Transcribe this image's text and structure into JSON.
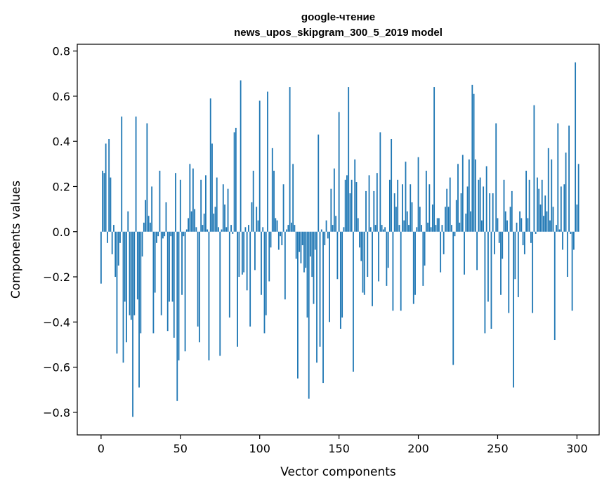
{
  "chart_data": {
    "type": "bar",
    "title": "google-чтение",
    "subtitle": "news_upos_skipgram_300_5_2019 model",
    "xlabel": "Vector components",
    "ylabel": "Components values",
    "xlim": [
      -15,
      314
    ],
    "ylim": [
      -0.9,
      0.83
    ],
    "xticks": [
      0,
      50,
      100,
      150,
      200,
      250,
      300
    ],
    "xtick_labels": [
      "0",
      "50",
      "100",
      "150",
      "200",
      "250",
      "300"
    ],
    "yticks": [
      -0.8,
      -0.6,
      -0.4,
      -0.2,
      0.0,
      0.2,
      0.4,
      0.6,
      0.8
    ],
    "ytick_labels": [
      "−0.8",
      "−0.6",
      "−0.4",
      "−0.2",
      "0.0",
      "0.2",
      "0.4",
      "0.6",
      "0.8"
    ],
    "grid": false,
    "bar_color": "#1f77b4",
    "values": [
      -0.23,
      0.27,
      0.26,
      0.39,
      -0.05,
      0.41,
      0.24,
      -0.1,
      0.03,
      -0.2,
      -0.54,
      -0.15,
      -0.05,
      0.51,
      -0.58,
      -0.31,
      -0.49,
      0.09,
      -0.37,
      -0.39,
      -0.82,
      -0.37,
      0.51,
      -0.3,
      -0.69,
      -0.45,
      -0.11,
      0.04,
      0.14,
      0.48,
      0.07,
      0.04,
      0.2,
      -0.45,
      -0.27,
      -0.05,
      -0.02,
      0.27,
      -0.37,
      -0.03,
      -0.02,
      0.13,
      -0.44,
      -0.31,
      -0.02,
      -0.31,
      -0.47,
      0.26,
      -0.75,
      -0.57,
      0.23,
      -0.28,
      -0.02,
      -0.53,
      0.01,
      0.06,
      0.3,
      0.09,
      0.28,
      0.1,
      0.02,
      -0.42,
      -0.49,
      0.23,
      0.03,
      0.08,
      0.25,
      0.01,
      -0.57,
      0.59,
      0.39,
      0.08,
      0.11,
      0.24,
      0.02,
      -0.55,
      0.01,
      0.21,
      0.12,
      0.02,
      0.19,
      -0.38,
      0.03,
      -0.01,
      0.44,
      0.46,
      -0.51,
      -0.2,
      0.67,
      -0.19,
      -0.18,
      0.02,
      -0.26,
      0.03,
      -0.42,
      0.13,
      0.27,
      -0.17,
      0.11,
      0.05,
      0.58,
      -0.28,
      0.02,
      -0.45,
      -0.37,
      0.62,
      -0.22,
      -0.07,
      0.37,
      0.27,
      0.06,
      0.05,
      -0.08,
      -0.02,
      -0.06,
      0.21,
      -0.3,
      0.01,
      0.03,
      0.64,
      0.04,
      0.3,
      0.03,
      -0.12,
      -0.65,
      -0.09,
      -0.14,
      -0.06,
      -0.18,
      -0.16,
      -0.38,
      -0.74,
      -0.11,
      -0.2,
      -0.32,
      -0.08,
      -0.58,
      0.43,
      -0.51,
      0.01,
      -0.67,
      -0.06,
      0.05,
      -0.03,
      -0.4,
      0.19,
      0.03,
      0.28,
      0.07,
      -0.21,
      0.53,
      -0.43,
      -0.38,
      0.02,
      0.23,
      0.25,
      0.64,
      0.17,
      0.23,
      -0.62,
      0.32,
      0.22,
      0.06,
      -0.07,
      -0.13,
      -0.27,
      -0.28,
      0.18,
      -0.2,
      0.25,
      0.02,
      -0.33,
      0.18,
      0.03,
      0.26,
      -0.22,
      0.44,
      0.03,
      0.01,
      0.02,
      -0.24,
      -0.16,
      0.23,
      0.41,
      -0.35,
      0.17,
      0.11,
      0.23,
      0.03,
      -0.35,
      0.21,
      0.05,
      0.31,
      0.09,
      0.03,
      0.21,
      0.13,
      -0.32,
      -0.28,
      0.02,
      0.33,
      0.11,
      0.03,
      -0.24,
      -0.15,
      0.27,
      0.04,
      0.21,
      0.02,
      0.12,
      0.64,
      0.03,
      0.06,
      0.06,
      -0.18,
      0.03,
      -0.1,
      0.11,
      0.19,
      0.11,
      0.24,
      0.03,
      -0.59,
      -0.02,
      0.14,
      0.3,
      0.04,
      0.17,
      0.34,
      -0.19,
      0.08,
      0.2,
      0.32,
      0.09,
      0.65,
      0.61,
      0.32,
      -0.17,
      0.23,
      0.24,
      0.05,
      0.2,
      -0.45,
      0.29,
      -0.31,
      0.17,
      -0.43,
      0.17,
      -0.1,
      0.48,
      0.06,
      -0.05,
      -0.28,
      -0.12,
      0.23,
      0.09,
      0.05,
      -0.36,
      0.11,
      0.18,
      -0.69,
      -0.21,
      0.04,
      -0.29,
      0.09,
      0.06,
      -0.06,
      -0.1,
      0.27,
      0.06,
      0.23,
      -0.05,
      -0.36,
      0.56,
      -0.01,
      0.24,
      0.19,
      0.12,
      0.23,
      0.07,
      0.16,
      0.09,
      0.37,
      0.05,
      0.32,
      0.11,
      -0.48,
      0.03,
      0.48,
      0.01,
      0.2,
      -0.08,
      0.21,
      0.35,
      -0.2,
      0.47,
      -0.01,
      -0.35,
      -0.08,
      0.75,
      0.12,
      0.3
    ]
  }
}
